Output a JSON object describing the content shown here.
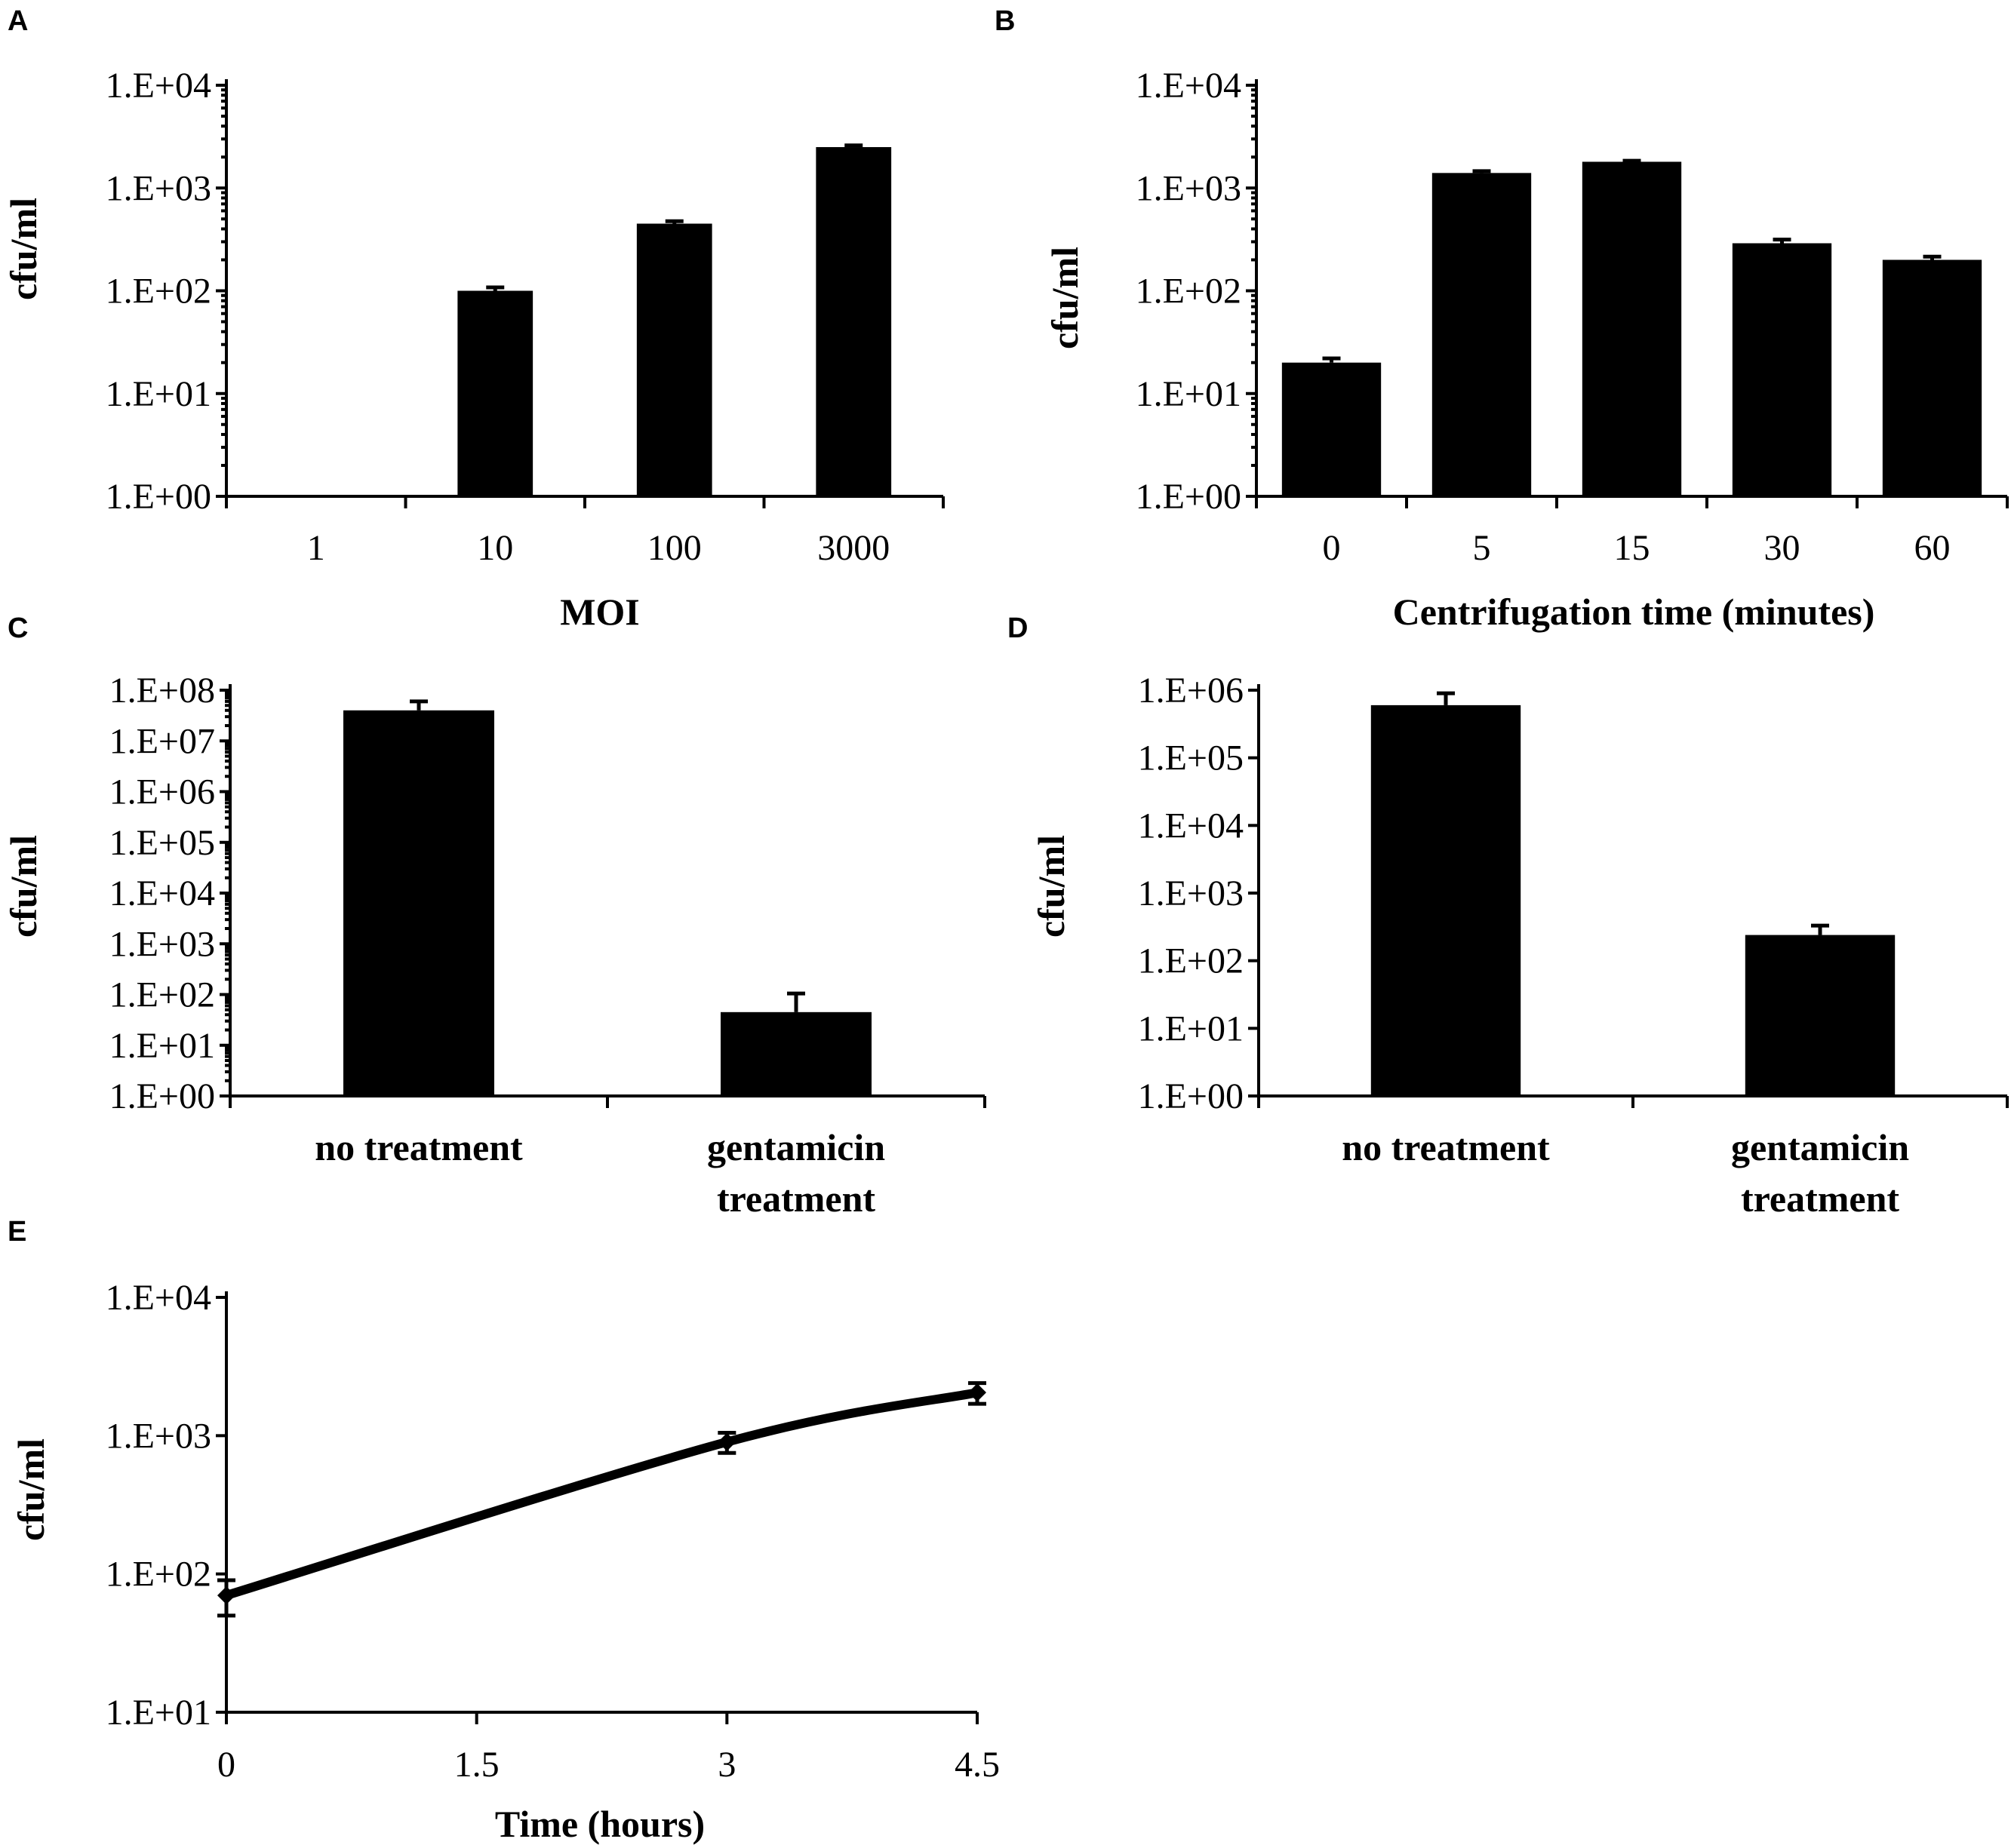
{
  "chart_data": [
    {
      "panel": "A",
      "type": "bar",
      "title": "",
      "xlabel": "MOI",
      "ylabel": "cfu/ml",
      "yscale": "log",
      "ylim": [
        1,
        10000
      ],
      "yticks": [
        "1.E+00",
        "1.E+01",
        "1.E+02",
        "1.E+03",
        "1.E+04"
      ],
      "categories": [
        "1",
        "10",
        "100",
        "3000"
      ],
      "values": [
        0,
        100,
        450,
        2500
      ],
      "errors": [
        0,
        8,
        25,
        100
      ]
    },
    {
      "panel": "B",
      "type": "bar",
      "title": "",
      "xlabel": "Centrifugation time (minutes)",
      "ylabel": "cfu/ml",
      "yscale": "log",
      "ylim": [
        1,
        10000
      ],
      "yticks": [
        "1.E+00",
        "1.E+01",
        "1.E+02",
        "1.E+03",
        "1.E+04"
      ],
      "categories": [
        "0",
        "5",
        "15",
        "30",
        "60"
      ],
      "values": [
        20,
        1400,
        1800,
        290,
        200
      ],
      "errors": [
        2,
        60,
        40,
        25,
        15
      ]
    },
    {
      "panel": "C",
      "type": "bar",
      "title": "",
      "xlabel": "",
      "ylabel": "cfu/ml",
      "yscale": "log",
      "ylim": [
        1,
        100000000
      ],
      "yticks": [
        "1.E+00",
        "1.E+01",
        "1.E+02",
        "1.E+03",
        "1.E+04",
        "1.E+05",
        "1.E+06",
        "1.E+07",
        "1.E+08"
      ],
      "categories": [
        [
          "no treatment"
        ],
        [
          "gentamicin",
          "treatment"
        ]
      ],
      "values": [
        40000000,
        45
      ],
      "errors": [
        20000000,
        60
      ]
    },
    {
      "panel": "D",
      "type": "bar",
      "title": "",
      "xlabel": "",
      "ylabel": "cfu/ml",
      "yscale": "log",
      "ylim": [
        1,
        1000000
      ],
      "yticks": [
        "1.E+00",
        "1.E+01",
        "1.E+02",
        "1.E+03",
        "1.E+04",
        "1.E+05",
        "1.E+06"
      ],
      "categories": [
        [
          "no treatment"
        ],
        [
          "gentamicin",
          "treatment"
        ]
      ],
      "values": [
        600000,
        240
      ],
      "errors": [
        300000,
        90
      ]
    },
    {
      "panel": "E",
      "type": "line",
      "title": "",
      "xlabel": "Time (hours)",
      "ylabel": "cfu/ml",
      "yscale": "log",
      "ylim": [
        10,
        10000
      ],
      "xlim": [
        0,
        4.5
      ],
      "yticks": [
        "1.E+01",
        "1.E+02",
        "1.E+03",
        "1.E+04"
      ],
      "xticks": [
        "0",
        "1.5",
        "3",
        "4.5"
      ],
      "x": [
        0,
        3,
        4.5
      ],
      "values": [
        70,
        900,
        2050
      ],
      "errors": [
        20,
        150,
        350
      ]
    }
  ]
}
